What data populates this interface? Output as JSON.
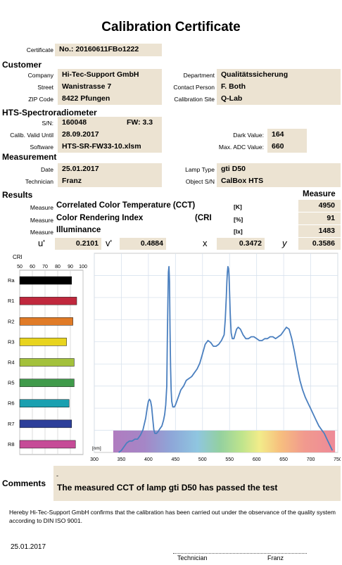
{
  "title": "Calibration Certificate",
  "certificate": {
    "label": "Certificate",
    "value": "No.: 20160611FBo1222"
  },
  "customer": {
    "heading": "Customer",
    "company_label": "Company",
    "company": "Hi-Tec-Support GmbH",
    "street_label": "Street",
    "street": "Wanistrasse 7",
    "zip_label": "ZIP Code",
    "zip": "8422 Pfungen",
    "department_label": "Department",
    "department": "Qualitätssicherung",
    "contact_label": "Contact Person",
    "contact": "F. Both",
    "site_label": "Calibration Site",
    "site": "Q-Lab"
  },
  "device": {
    "heading": "HTS-Spectroradiometer",
    "sn_label": "S/N:",
    "sn": "160048",
    "fw": "FW: 3.3",
    "valid_label": "Calib. Valid Until",
    "valid": "28.09.2017",
    "software_label": "Software",
    "software": "HTS-SR-FW33-10.xlsm",
    "dark_label": "Dark Value:",
    "dark": "164",
    "adc_label": "Max. ADC Value:",
    "adc": "660"
  },
  "measurement": {
    "heading": "Measurement",
    "date_label": "Date",
    "date": "25.01.2017",
    "tech_label": "Technician",
    "tech": "Franz",
    "lamp_label": "Lamp Type",
    "lamp": "gti D50",
    "object_label": "Object S/N",
    "object": "CalBox HTS"
  },
  "results": {
    "heading": "Results",
    "measure_heading": "Measure",
    "rows": [
      {
        "label": "Measure",
        "name": "Correlated Color Temperature (CCT)",
        "abbr": "",
        "unit": "[K]",
        "value": "4950"
      },
      {
        "label": "Measure",
        "name": "Color Rendering Index",
        "abbr": "(CRI",
        "unit": "[%]",
        "value": "91"
      },
      {
        "label": "Measure",
        "name": "Illuminance",
        "abbr": "",
        "unit": "[lx]",
        "value": "1483"
      }
    ],
    "coords": {
      "u_label": "u'",
      "u": "0.2101",
      "v_label": "v'",
      "v": "0.4884",
      "x_label": "x",
      "x": "0.3472",
      "y_label": "y",
      "y": "0.3586"
    }
  },
  "chart_data": [
    {
      "type": "bar",
      "title": "CRI",
      "orientation": "horizontal",
      "categories": [
        "Ra",
        "R1",
        "R2",
        "R3",
        "R4",
        "R5",
        "R6",
        "R7",
        "R8"
      ],
      "values": [
        91,
        95,
        92,
        87,
        93,
        93,
        89,
        91,
        94
      ],
      "colors": [
        "#000000",
        "#c0283d",
        "#e07b27",
        "#e8d41e",
        "#a3c13b",
        "#3f9a4a",
        "#1aa0b0",
        "#2d3f9a",
        "#c64b97"
      ],
      "xlim": [
        50,
        100
      ],
      "xticks": [
        "50",
        "60",
        "70",
        "80",
        "90",
        "100"
      ],
      "grid": true
    },
    {
      "type": "line",
      "title": "",
      "unit_label": "[nm]",
      "xlim": [
        300,
        750
      ],
      "xticks": [
        "300",
        "350",
        "400",
        "450",
        "500",
        "550",
        "600",
        "650",
        "700",
        "750"
      ],
      "ylim": [
        0,
        1.05
      ],
      "grid": true,
      "series": [
        {
          "color": "#4a7fbf",
          "x": [
            345,
            350,
            355,
            360,
            365,
            370,
            375,
            380,
            385,
            390,
            395,
            398,
            400,
            402,
            404,
            406,
            408,
            410,
            412,
            415,
            418,
            420,
            425,
            428,
            430,
            432,
            434,
            435,
            436,
            437,
            438,
            439,
            440,
            441,
            442,
            443,
            445,
            448,
            450,
            455,
            460,
            465,
            470,
            475,
            480,
            485,
            490,
            495,
            500,
            505,
            510,
            515,
            520,
            525,
            530,
            535,
            540,
            542,
            544,
            545,
            546,
            547,
            548,
            549,
            550,
            551,
            552,
            553,
            555,
            558,
            560,
            563,
            566,
            570,
            575,
            580,
            585,
            590,
            595,
            600,
            605,
            610,
            615,
            620,
            625,
            630,
            635,
            640,
            645,
            650,
            655,
            660,
            665,
            670,
            675,
            680,
            685,
            690,
            695,
            700,
            705,
            710,
            715,
            720,
            725,
            730,
            735,
            740
          ],
          "y": [
            0.0,
            0.01,
            0.03,
            0.05,
            0.06,
            0.06,
            0.07,
            0.07,
            0.09,
            0.12,
            0.18,
            0.24,
            0.27,
            0.28,
            0.27,
            0.24,
            0.18,
            0.12,
            0.1,
            0.1,
            0.11,
            0.12,
            0.14,
            0.17,
            0.2,
            0.25,
            0.35,
            0.6,
            0.8,
            0.95,
            0.98,
            0.9,
            0.65,
            0.45,
            0.33,
            0.27,
            0.24,
            0.24,
            0.25,
            0.29,
            0.33,
            0.35,
            0.38,
            0.39,
            0.4,
            0.42,
            0.44,
            0.47,
            0.52,
            0.57,
            0.59,
            0.58,
            0.56,
            0.56,
            0.57,
            0.59,
            0.62,
            0.7,
            0.82,
            0.9,
            0.95,
            0.98,
            0.97,
            0.93,
            0.85,
            0.75,
            0.68,
            0.63,
            0.6,
            0.6,
            0.62,
            0.65,
            0.66,
            0.65,
            0.62,
            0.6,
            0.6,
            0.61,
            0.61,
            0.6,
            0.59,
            0.59,
            0.6,
            0.6,
            0.61,
            0.61,
            0.6,
            0.61,
            0.62,
            0.64,
            0.66,
            0.65,
            0.6,
            0.53,
            0.45,
            0.38,
            0.33,
            0.29,
            0.26,
            0.23,
            0.2,
            0.17,
            0.14,
            0.12,
            0.1,
            0.07,
            0.04,
            0.01
          ]
        }
      ]
    }
  ],
  "comments": {
    "heading": "Comments",
    "mark": "-",
    "text": "The measured CCT of lamp gti D50 has passed the test"
  },
  "statement": "Hereby Hi-Tec-Support GmbH confirms that the calibration has been carried out under the observance of the quality system according to DIN ISO 9001.",
  "footer": {
    "date": "25.01.2017",
    "tech_label": "Technician",
    "tech_name": "Franz"
  }
}
